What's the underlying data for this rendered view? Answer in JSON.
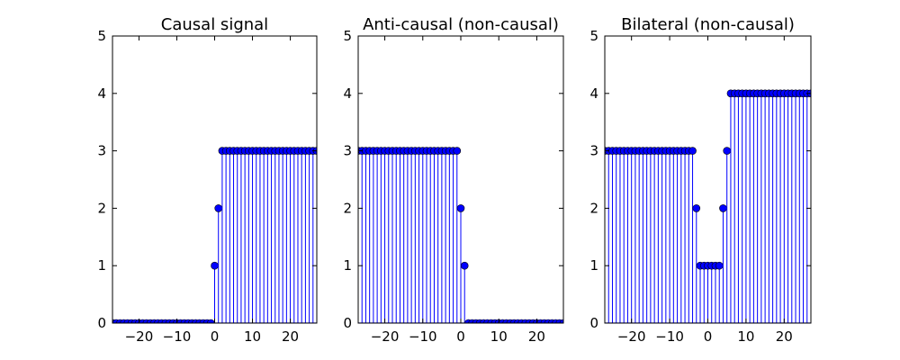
{
  "chart_data": [
    {
      "type": "stem",
      "title": "Causal signal",
      "xlabel": "",
      "ylabel": "",
      "xlim": [
        -27,
        27
      ],
      "ylim": [
        0,
        5
      ],
      "x_ticks": [
        -20,
        -10,
        0,
        10,
        20
      ],
      "y_ticks": [
        0,
        1,
        2,
        3,
        4,
        5
      ],
      "grid": false,
      "color": "#0000ff",
      "x": [
        -27,
        -26,
        -25,
        -24,
        -23,
        -22,
        -21,
        -20,
        -19,
        -18,
        -17,
        -16,
        -15,
        -14,
        -13,
        -12,
        -11,
        -10,
        -9,
        -8,
        -7,
        -6,
        -5,
        -4,
        -3,
        -2,
        -1,
        0,
        1,
        2,
        3,
        4,
        5,
        6,
        7,
        8,
        9,
        10,
        11,
        12,
        13,
        14,
        15,
        16,
        17,
        18,
        19,
        20,
        21,
        22,
        23,
        24,
        25,
        26,
        27
      ],
      "values": [
        0,
        0,
        0,
        0,
        0,
        0,
        0,
        0,
        0,
        0,
        0,
        0,
        0,
        0,
        0,
        0,
        0,
        0,
        0,
        0,
        0,
        0,
        0,
        0,
        0,
        0,
        0,
        1,
        2,
        3,
        3,
        3,
        3,
        3,
        3,
        3,
        3,
        3,
        3,
        3,
        3,
        3,
        3,
        3,
        3,
        3,
        3,
        3,
        3,
        3,
        3,
        3,
        3,
        3,
        3
      ]
    },
    {
      "type": "stem",
      "title": "Anti-causal (non-causal)",
      "xlabel": "",
      "ylabel": "",
      "xlim": [
        -27,
        27
      ],
      "ylim": [
        0,
        5
      ],
      "x_ticks": [
        -20,
        -10,
        0,
        10,
        20
      ],
      "y_ticks": [
        0,
        1,
        2,
        3,
        4,
        5
      ],
      "grid": false,
      "color": "#0000ff",
      "x": [
        -27,
        -26,
        -25,
        -24,
        -23,
        -22,
        -21,
        -20,
        -19,
        -18,
        -17,
        -16,
        -15,
        -14,
        -13,
        -12,
        -11,
        -10,
        -9,
        -8,
        -7,
        -6,
        -5,
        -4,
        -3,
        -2,
        -1,
        0,
        1,
        2,
        3,
        4,
        5,
        6,
        7,
        8,
        9,
        10,
        11,
        12,
        13,
        14,
        15,
        16,
        17,
        18,
        19,
        20,
        21,
        22,
        23,
        24,
        25,
        26,
        27
      ],
      "values": [
        3,
        3,
        3,
        3,
        3,
        3,
        3,
        3,
        3,
        3,
        3,
        3,
        3,
        3,
        3,
        3,
        3,
        3,
        3,
        3,
        3,
        3,
        3,
        3,
        3,
        3,
        3,
        2,
        1,
        0,
        0,
        0,
        0,
        0,
        0,
        0,
        0,
        0,
        0,
        0,
        0,
        0,
        0,
        0,
        0,
        0,
        0,
        0,
        0,
        0,
        0,
        0,
        0,
        0,
        0
      ]
    },
    {
      "type": "stem",
      "title": "Bilateral (non-causal)",
      "xlabel": "",
      "ylabel": "",
      "xlim": [
        -27,
        27
      ],
      "ylim": [
        0,
        5
      ],
      "x_ticks": [
        -20,
        -10,
        0,
        10,
        20
      ],
      "y_ticks": [
        0,
        1,
        2,
        3,
        4,
        5
      ],
      "grid": false,
      "color": "#0000ff",
      "x": [
        -27,
        -26,
        -25,
        -24,
        -23,
        -22,
        -21,
        -20,
        -19,
        -18,
        -17,
        -16,
        -15,
        -14,
        -13,
        -12,
        -11,
        -10,
        -9,
        -8,
        -7,
        -6,
        -5,
        -4,
        -3,
        -2,
        -1,
        0,
        1,
        2,
        3,
        4,
        5,
        6,
        7,
        8,
        9,
        10,
        11,
        12,
        13,
        14,
        15,
        16,
        17,
        18,
        19,
        20,
        21,
        22,
        23,
        24,
        25,
        26,
        27
      ],
      "values": [
        3,
        3,
        3,
        3,
        3,
        3,
        3,
        3,
        3,
        3,
        3,
        3,
        3,
        3,
        3,
        3,
        3,
        3,
        3,
        3,
        3,
        3,
        3,
        3,
        2,
        1,
        1,
        1,
        1,
        1,
        1,
        2,
        3,
        4,
        4,
        4,
        4,
        4,
        4,
        4,
        4,
        4,
        4,
        4,
        4,
        4,
        4,
        4,
        4,
        4,
        4,
        4,
        4,
        4,
        4
      ]
    }
  ]
}
